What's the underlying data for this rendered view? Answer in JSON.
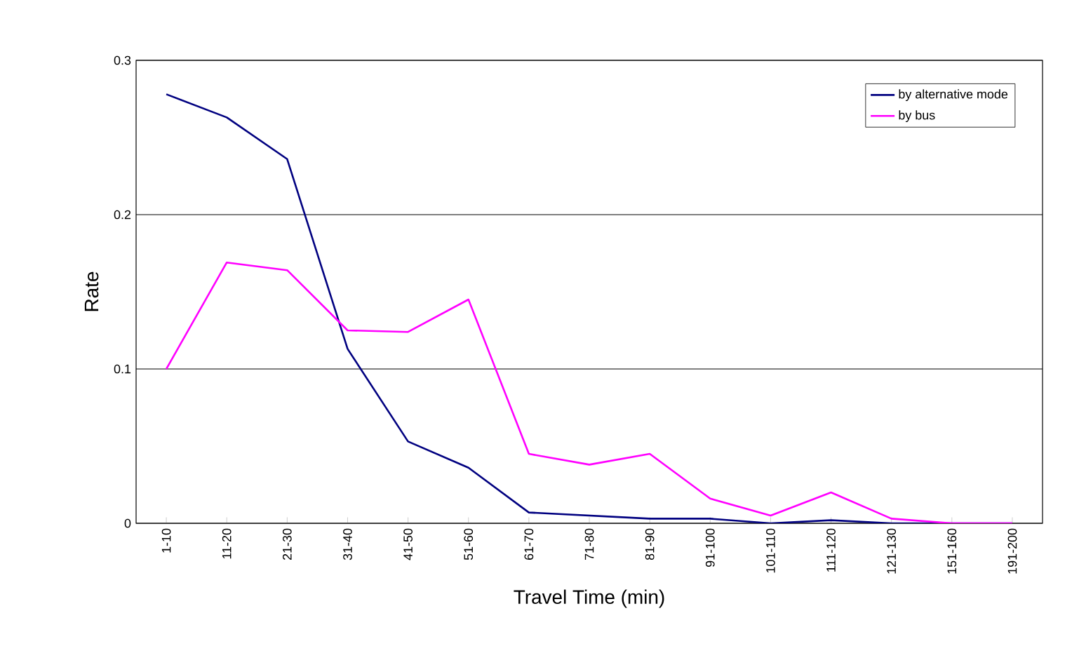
{
  "chart_data": {
    "type": "line",
    "xlabel": "Travel Time (min)",
    "ylabel": "Rate",
    "categories": [
      "1-10",
      "11-20",
      "21-30",
      "31-40",
      "41-50",
      "51-60",
      "61-70",
      "71-80",
      "81-90",
      "91-100",
      "101-110",
      "111-120",
      "121-130",
      "151-160",
      "191-200"
    ],
    "series": [
      {
        "name": "by alternative mode",
        "color": "#000080",
        "values": [
          0.278,
          0.263,
          0.236,
          0.113,
          0.053,
          0.036,
          0.007,
          0.005,
          0.003,
          0.003,
          0,
          0.002,
          0,
          0,
          0
        ]
      },
      {
        "name": "by bus",
        "color": "#ff00ff",
        "values": [
          0.1,
          0.169,
          0.164,
          0.125,
          0.124,
          0.145,
          0.045,
          0.038,
          0.045,
          0.016,
          0.005,
          0.02,
          0.003,
          0,
          0
        ]
      }
    ],
    "ylim": [
      0,
      0.3
    ],
    "yticks": [
      0,
      0.1,
      0.2,
      0.3
    ],
    "grid": "y",
    "legend": "top right",
    "marker": "none",
    "line_style": "solid"
  }
}
